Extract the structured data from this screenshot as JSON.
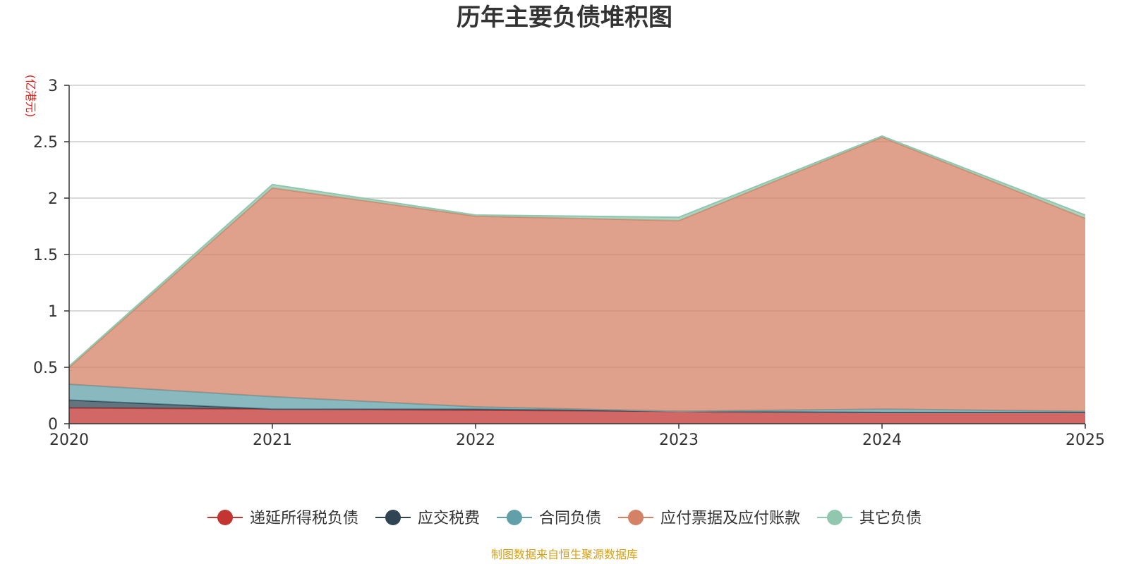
{
  "chart_data": {
    "type": "area",
    "stacked": true,
    "title": "历年主要负债堆积图",
    "unit": "(亿港元)",
    "x": [
      "2020",
      "2021",
      "2022",
      "2023",
      "2024",
      "2025"
    ],
    "ylim": [
      0,
      3
    ],
    "yticks": [
      "0",
      "0.5",
      "1",
      "1.5",
      "2",
      "2.5",
      "3"
    ],
    "grid": true,
    "legend_position": "bottom",
    "series": [
      {
        "name": "递延所得税负债",
        "color": "#c23531",
        "values": [
          0.14,
          0.13,
          0.12,
          0.11,
          0.1,
          0.1
        ]
      },
      {
        "name": "应交税费",
        "color": "#2f4554",
        "values": [
          0.07,
          0.0,
          0.01,
          0.0,
          0.0,
          0.0
        ]
      },
      {
        "name": "合同负债",
        "color": "#61a0a8",
        "values": [
          0.14,
          0.11,
          0.02,
          0.0,
          0.03,
          0.01
        ]
      },
      {
        "name": "应付票据及应付账款",
        "color": "#d48265",
        "values": [
          0.15,
          1.85,
          1.69,
          1.69,
          2.41,
          1.71
        ]
      },
      {
        "name": "其它负债",
        "color": "#91c7ae",
        "values": [
          0.01,
          0.03,
          0.01,
          0.03,
          0.01,
          0.03
        ]
      }
    ]
  },
  "source_note": "制图数据来自恒生聚源数据库"
}
